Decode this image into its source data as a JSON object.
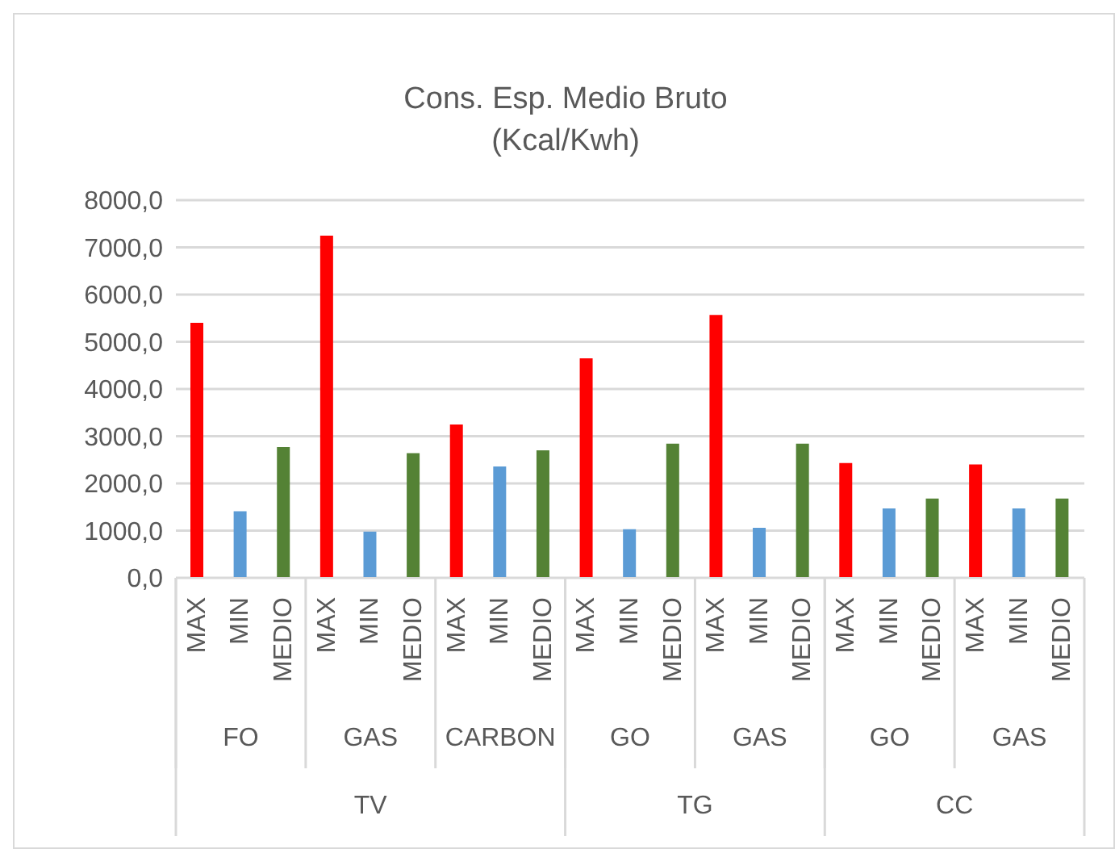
{
  "chart_data": {
    "type": "bar",
    "title": "Cons. Esp. Medio Bruto",
    "subtitle": "(Kcal/Kwh)",
    "categories": [
      "MAX",
      "MIN",
      "MEDIO",
      "MAX",
      "MIN",
      "MEDIO",
      "MAX",
      "MIN",
      "MEDIO",
      "MAX",
      "MIN",
      "MEDIO",
      "MAX",
      "MIN",
      "MEDIO",
      "MAX",
      "MIN",
      "MEDIO",
      "MAX",
      "MIN",
      "MEDIO"
    ],
    "values": [
      5400,
      1410,
      2770,
      7250,
      980,
      2640,
      3250,
      2360,
      2700,
      4650,
      1030,
      2840,
      5570,
      1060,
      2840,
      2430,
      1470,
      1680,
      2400,
      1470,
      1680
    ],
    "colors": [
      "#ff0000",
      "#5b9bd5",
      "#548235",
      "#ff0000",
      "#5b9bd5",
      "#548235",
      "#ff0000",
      "#5b9bd5",
      "#548235",
      "#ff0000",
      "#5b9bd5",
      "#548235",
      "#ff0000",
      "#5b9bd5",
      "#548235",
      "#ff0000",
      "#5b9bd5",
      "#548235",
      "#ff0000",
      "#5b9bd5",
      "#548235"
    ],
    "ylim": [
      0,
      8000
    ],
    "yticks": [
      {
        "value": 0,
        "label": "0,0"
      },
      {
        "value": 1000,
        "label": "1000,0"
      },
      {
        "value": 2000,
        "label": "2000,0"
      },
      {
        "value": 3000,
        "label": "3000,0"
      },
      {
        "value": 4000,
        "label": "4000,0"
      },
      {
        "value": 5000,
        "label": "5000,0"
      },
      {
        "value": 6000,
        "label": "6000,0"
      },
      {
        "value": 7000,
        "label": "7000,0"
      },
      {
        "value": 8000,
        "label": "8000,0"
      }
    ],
    "annotations": [
      "FO",
      "GAS",
      "CARBON",
      "GO",
      "GAS",
      "GO",
      "GAS",
      "TV",
      "TG",
      "CC"
    ],
    "grid": "y",
    "legend": false
  }
}
